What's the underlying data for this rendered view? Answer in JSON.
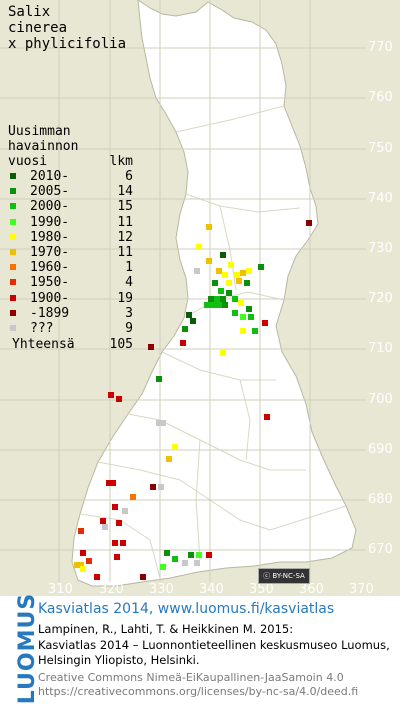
{
  "species": {
    "line1": "Salix",
    "line2": "cinerea",
    "line3": "x phylicifolia"
  },
  "legend": {
    "title_lines": [
      "Uusimman",
      "havainnon"
    ],
    "col_year": "vuosi",
    "col_count": "lkm",
    "rows": [
      {
        "label": "2010-",
        "count": "6",
        "color": "#0a5c0a"
      },
      {
        "label": "2005-",
        "count": "14",
        "color": "#0c900c"
      },
      {
        "label": "2000-",
        "count": "15",
        "color": "#10c010"
      },
      {
        "label": "1990-",
        "count": "11",
        "color": "#40ff20"
      },
      {
        "label": "1980-",
        "count": "12",
        "color": "#ffff00"
      },
      {
        "label": "1970-",
        "count": "11",
        "color": "#f0c000"
      },
      {
        "label": "1960-",
        "count": "1",
        "color": "#ff7000"
      },
      {
        "label": "1950-",
        "count": "4",
        "color": "#e03000"
      },
      {
        "label": "1900-",
        "count": "19",
        "color": "#cc0000"
      },
      {
        "label": "-1899",
        "count": "3",
        "color": "#8a0000"
      },
      {
        "label": "???",
        "count": "9",
        "color": "#c8c8c8"
      }
    ],
    "total_label": "Yhteensä",
    "total_count": "105"
  },
  "axes": {
    "y_ticks": [
      "770",
      "760",
      "750",
      "740",
      "730",
      "720",
      "710",
      "700",
      "690",
      "680",
      "670"
    ],
    "x_ticks": [
      "310",
      "320",
      "330",
      "340",
      "350",
      "360",
      "370"
    ]
  },
  "license_badge": "BY-NC-SA",
  "footer": {
    "brand": "LUOMUS",
    "title": "Kasviatlas 2014, www.luomus.fi/kasviatlas",
    "citation_line1": "Lampinen, R., Lahti, T. & Heikkinen M. 2015:",
    "citation_line2": "Kasviatlas 2014 – Luonnontieteellinen keskusmuseo Luomus,",
    "citation_line3": "Helsingin Yliopisto, Helsinki.",
    "license_line1": "Creative Commons Nimeä-EiKaupallinen-JaaSamoin 4.0",
    "license_line2": "https://creativecommons.org/licenses/by-nc-sa/4.0/deed.fi"
  }
}
